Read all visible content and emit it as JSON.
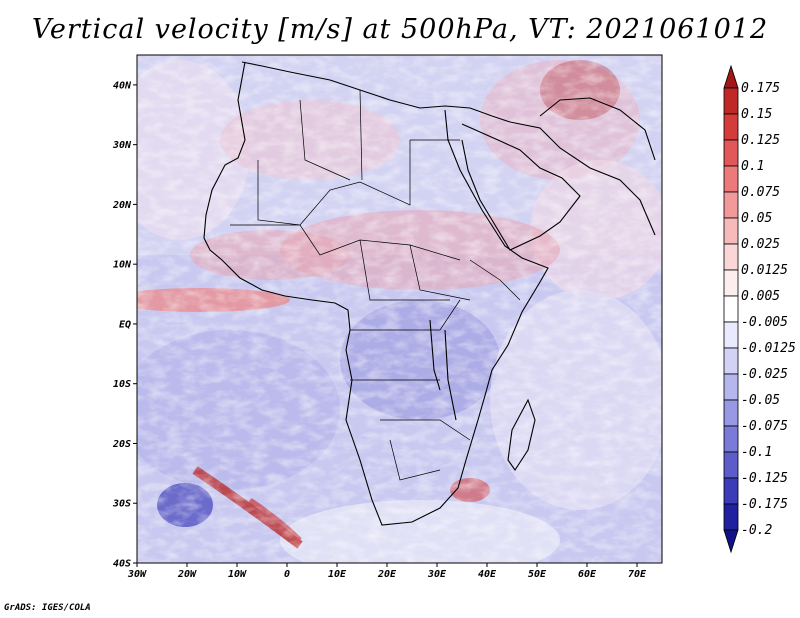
{
  "title": "Vertical velocity [m/s] at 500hPa, VT: 2021061012",
  "credit": "GrADS: IGES/COLA",
  "map": {
    "lon_range": [
      -30,
      75
    ],
    "lat_range": [
      -40,
      45
    ],
    "lon_ticks": [
      {
        "value": -30,
        "label": "30W"
      },
      {
        "value": -20,
        "label": "20W"
      },
      {
        "value": -10,
        "label": "10W"
      },
      {
        "value": 0,
        "label": "0"
      },
      {
        "value": 10,
        "label": "10E"
      },
      {
        "value": 20,
        "label": "20E"
      },
      {
        "value": 30,
        "label": "30E"
      },
      {
        "value": 40,
        "label": "40E"
      },
      {
        "value": 50,
        "label": "50E"
      },
      {
        "value": 60,
        "label": "60E"
      },
      {
        "value": 70,
        "label": "70E"
      }
    ],
    "lat_ticks": [
      {
        "value": 40,
        "label": "40N"
      },
      {
        "value": 30,
        "label": "30N"
      },
      {
        "value": 20,
        "label": "20N"
      },
      {
        "value": 10,
        "label": "10N"
      },
      {
        "value": 0,
        "label": "EQ"
      },
      {
        "value": -10,
        "label": "10S"
      },
      {
        "value": -20,
        "label": "20S"
      },
      {
        "value": -30,
        "label": "30S"
      },
      {
        "value": -40,
        "label": "40S"
      }
    ]
  },
  "colorbar": {
    "labels": [
      "0.175",
      "0.15",
      "0.125",
      "0.1",
      "0.075",
      "0.05",
      "0.025",
      "0.0125",
      "0.005",
      "-0.005",
      "-0.0125",
      "-0.025",
      "-0.05",
      "-0.075",
      "-0.1",
      "-0.125",
      "-0.175",
      "-0.2"
    ],
    "colors": [
      "#a01818",
      "#c02828",
      "#d43c3c",
      "#e25858",
      "#ec7a7a",
      "#f29a9a",
      "#f6baba",
      "#fad6d6",
      "#fdeeee",
      "#ffffff",
      "#eaeaff",
      "#d2d2f6",
      "#b6b6ee",
      "#9898e4",
      "#7a7ad8",
      "#5c5cca",
      "#3c3cb8",
      "#2020a0",
      "#10108a"
    ]
  }
}
